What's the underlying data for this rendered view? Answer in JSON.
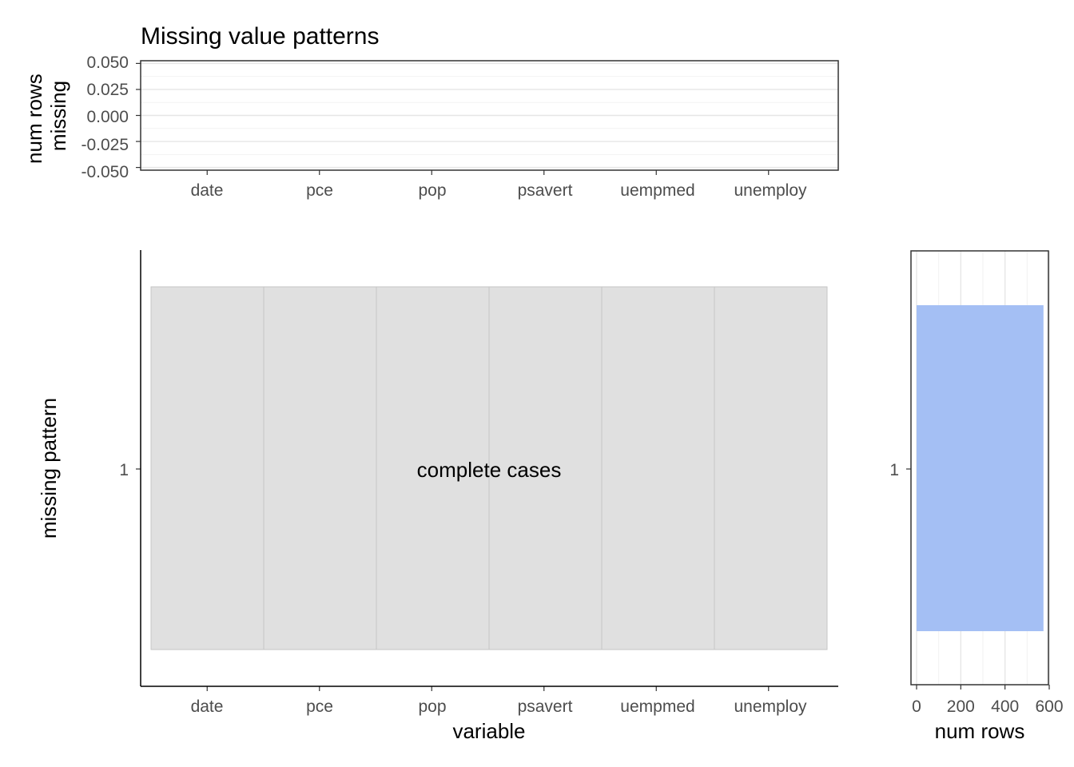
{
  "chart_data": [
    {
      "type": "bar",
      "panel": "top",
      "title": "Missing value patterns",
      "ylabel": "num rows\nmissing",
      "xlabel": "",
      "categories": [
        "date",
        "pce",
        "pop",
        "psavert",
        "uempmed",
        "unemploy"
      ],
      "values": [
        0,
        0,
        0,
        0,
        0,
        0
      ],
      "ylim": [
        -0.05,
        0.05
      ],
      "yticks": [
        "0.050",
        "0.025",
        "0.000",
        "-0.025",
        "-0.050"
      ],
      "grid": true
    },
    {
      "type": "heatmap",
      "panel": "main",
      "title": "",
      "xlabel": "variable",
      "ylabel": "missing pattern",
      "categories": [
        "date",
        "pce",
        "pop",
        "psavert",
        "uempmed",
        "unemploy"
      ],
      "rows": [
        "1"
      ],
      "cells": [
        [
          false,
          false,
          false,
          false,
          false,
          false
        ]
      ],
      "annotation": "complete cases",
      "fill_color": "#e0e0e0",
      "grid": false
    },
    {
      "type": "bar",
      "panel": "right",
      "orientation": "horizontal",
      "title": "",
      "xlabel": "num rows",
      "ylabel": "",
      "categories": [
        "1"
      ],
      "values": [
        574
      ],
      "xlim": [
        0,
        600
      ],
      "xticks": [
        "0",
        "200",
        "400",
        "600"
      ],
      "bar_color": "#a4bff4",
      "grid": true
    }
  ]
}
